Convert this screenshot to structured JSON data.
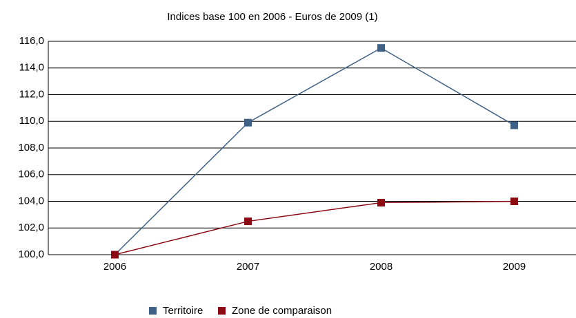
{
  "chart_data": {
    "type": "line",
    "title": "Indices base 100 en  2006  - Euros de 2009 (1)",
    "categories": [
      "2006",
      "2007",
      "2008",
      "2009"
    ],
    "series": [
      {
        "name": "Territoire",
        "color": "#3f6185",
        "values": [
          100,
          109.9,
          115.5,
          109.7
        ]
      },
      {
        "name": "Zone de comparaison",
        "color": "#8b0a14",
        "values": [
          100,
          102.5,
          103.9,
          104.0
        ]
      }
    ],
    "ylim": [
      100,
      116
    ],
    "yticks": [
      {
        "value": 100,
        "label": "100,0"
      },
      {
        "value": 102,
        "label": "102,0"
      },
      {
        "value": 104,
        "label": "104,0"
      },
      {
        "value": 106,
        "label": "106,0"
      },
      {
        "value": 108,
        "label": "108,0"
      },
      {
        "value": 110,
        "label": "110,0"
      },
      {
        "value": 112,
        "label": "112,0"
      },
      {
        "value": 114,
        "label": "114,0"
      },
      {
        "value": 116,
        "label": "116,0"
      }
    ],
    "grid": true
  }
}
